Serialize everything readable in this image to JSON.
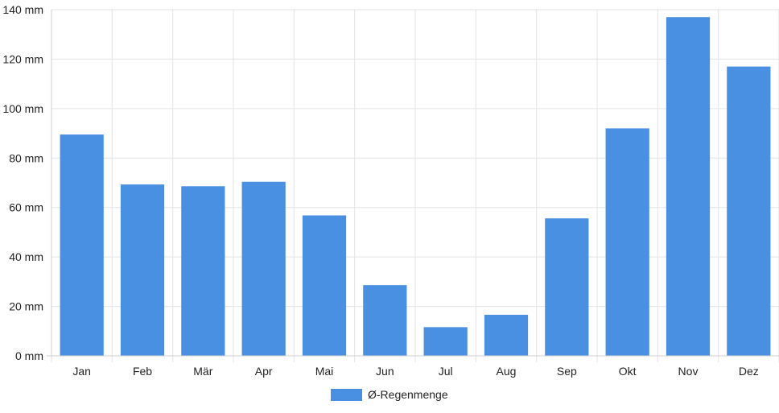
{
  "chart_data": {
    "type": "bar",
    "categories": [
      "Jan",
      "Feb",
      "Mär",
      "Apr",
      "Mai",
      "Jun",
      "Jul",
      "Aug",
      "Sep",
      "Okt",
      "Nov",
      "Dez"
    ],
    "series": [
      {
        "name": "Ø-Regenmenge",
        "values": [
          89.5,
          69.3,
          68.6,
          70.4,
          56.8,
          28.6,
          11.6,
          16.6,
          55.6,
          92.0,
          137.0,
          117.0
        ],
        "color": "#4a90e2"
      }
    ],
    "y_unit": "mm",
    "ylim": [
      0,
      140
    ],
    "y_ticks": [
      0,
      20,
      40,
      60,
      80,
      100,
      120,
      140
    ],
    "grid": true,
    "legend": {
      "position": "bottom",
      "label": "Ø-Regenmenge"
    }
  }
}
